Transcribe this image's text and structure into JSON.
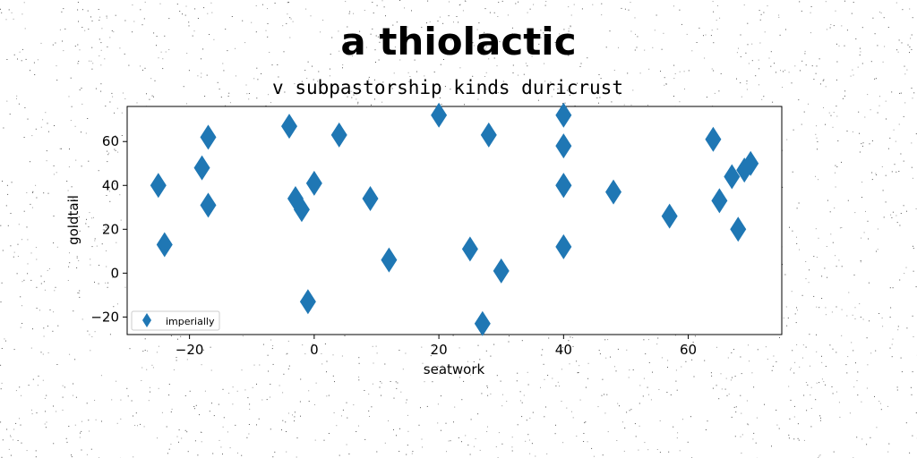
{
  "title": "a thiolactic",
  "subtitle": "v subpastorship kinds duricrust",
  "colors": {
    "marker": "#1f77b4",
    "background": "#ffffff"
  },
  "chart_data": {
    "type": "scatter",
    "title": "a thiolactic",
    "subtitle": "v subpastorship kinds duricrust",
    "xlabel": "seatwork",
    "ylabel": "goldtail",
    "xlim": [
      -30,
      75
    ],
    "ylim": [
      -28,
      76
    ],
    "xticks": [
      -20,
      0,
      20,
      40,
      60
    ],
    "yticks": [
      -20,
      0,
      20,
      40,
      60
    ],
    "xtick_labels": [
      "−20",
      "0",
      "20",
      "40",
      "60"
    ],
    "ytick_labels": [
      "−20",
      "0",
      "20",
      "40",
      "60"
    ],
    "grid": false,
    "legend_position": "lower-left",
    "marker": "thin-diamond",
    "series": [
      {
        "name": "imperially",
        "x": [
          -25,
          -24,
          -18,
          -17,
          -17,
          -4,
          -3,
          -2,
          -1,
          0,
          4,
          9,
          12,
          20,
          25,
          27,
          28,
          30,
          40,
          40,
          40,
          40,
          40,
          48,
          57,
          64,
          65,
          67,
          68,
          69,
          70
        ],
        "y": [
          40,
          13,
          48,
          62,
          31,
          67,
          34,
          29,
          -13,
          41,
          63,
          34,
          6,
          72,
          11,
          -23,
          63,
          1,
          72,
          58,
          40,
          12,
          40,
          37,
          26,
          61,
          33,
          44,
          20,
          47,
          50
        ]
      }
    ]
  }
}
